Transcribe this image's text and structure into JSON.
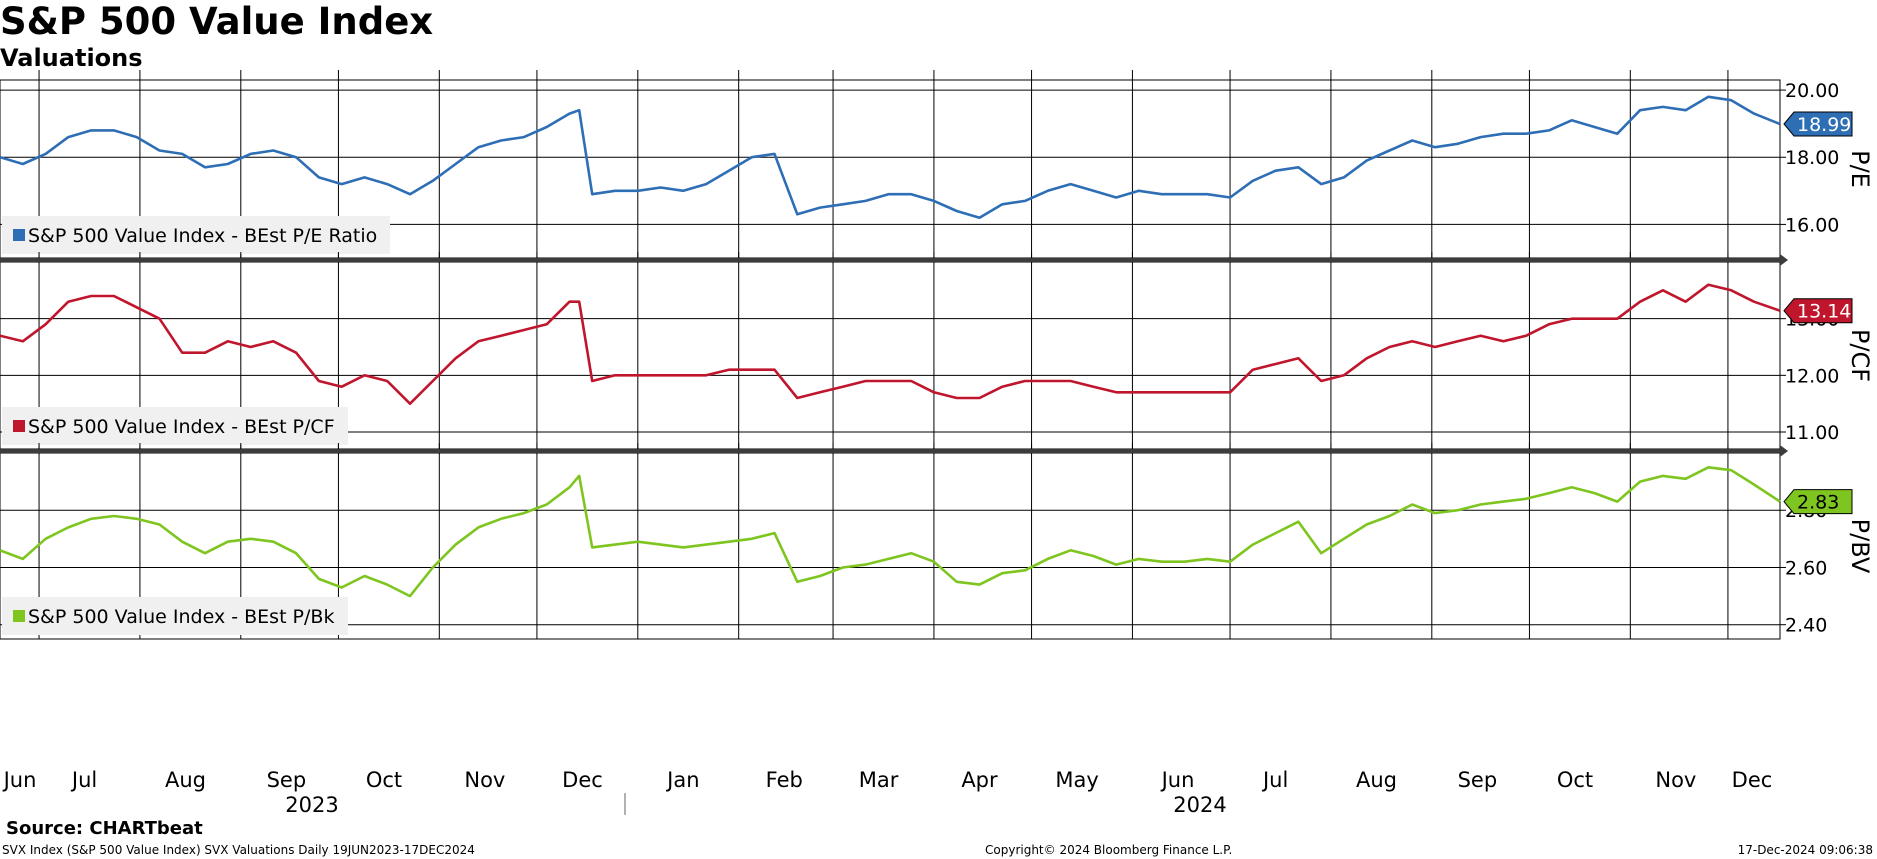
{
  "header": {
    "title": "S&P 500 Value Index",
    "subtitle": "Valuations"
  },
  "footer": {
    "source": "Source: CHARTbeat",
    "description": "SVX Index (S&P 500 Value Index) SVX Valuations  Daily 19JUN2023-17DEC2024",
    "copyright": "Copyright© 2024 Bloomberg Finance L.P.",
    "timestamp": "17-Dec-2024 09:06:38"
  },
  "chart_data": {
    "type": "line",
    "x_months": [
      "Jun",
      "Jul",
      "Aug",
      "Sep",
      "Oct",
      "Nov",
      "Dec",
      "Jan",
      "Feb",
      "Mar",
      "Apr",
      "May",
      "Jun",
      "Jul",
      "Aug",
      "Sep",
      "Oct",
      "Nov",
      "Dec"
    ],
    "x_years": [
      "2023",
      "2024"
    ],
    "x_range": [
      "2023-06-19",
      "2024-12-17"
    ],
    "grid": true,
    "legend_placement": "bottom-left",
    "panels": [
      {
        "ylabel": "P/E",
        "legend": "S&P 500 Value Index - BEst P/E Ratio",
        "color": "#2e6eb5",
        "ylim": [
          15.0,
          20.3
        ],
        "yticks": [
          16.0,
          18.0,
          20.0
        ],
        "ytick_labels": [
          "16.00",
          "18.00",
          "20.00"
        ],
        "last_value": 18.99,
        "last_label": "18.99",
        "series": [
          [
            "2023-06-19",
            18.0
          ],
          [
            "2023-06-26",
            17.8
          ],
          [
            "2023-07-03",
            18.1
          ],
          [
            "2023-07-10",
            18.6
          ],
          [
            "2023-07-17",
            18.8
          ],
          [
            "2023-07-24",
            18.8
          ],
          [
            "2023-07-31",
            18.6
          ],
          [
            "2023-08-07",
            18.2
          ],
          [
            "2023-08-14",
            18.1
          ],
          [
            "2023-08-21",
            17.7
          ],
          [
            "2023-08-28",
            17.8
          ],
          [
            "2023-09-04",
            18.1
          ],
          [
            "2023-09-11",
            18.2
          ],
          [
            "2023-09-18",
            18.0
          ],
          [
            "2023-09-25",
            17.4
          ],
          [
            "2023-10-02",
            17.2
          ],
          [
            "2023-10-09",
            17.4
          ],
          [
            "2023-10-16",
            17.2
          ],
          [
            "2023-10-23",
            16.9
          ],
          [
            "2023-10-30",
            17.3
          ],
          [
            "2023-11-06",
            17.8
          ],
          [
            "2023-11-13",
            18.3
          ],
          [
            "2023-11-20",
            18.5
          ],
          [
            "2023-11-27",
            18.6
          ],
          [
            "2023-12-04",
            18.9
          ],
          [
            "2023-12-11",
            19.3
          ],
          [
            "2023-12-14",
            19.4
          ],
          [
            "2023-12-18",
            16.9
          ],
          [
            "2023-12-25",
            17.0
          ],
          [
            "2024-01-01",
            17.0
          ],
          [
            "2024-01-08",
            17.1
          ],
          [
            "2024-01-15",
            17.0
          ],
          [
            "2024-01-22",
            17.2
          ],
          [
            "2024-01-29",
            17.6
          ],
          [
            "2024-02-05",
            18.0
          ],
          [
            "2024-02-12",
            18.1
          ],
          [
            "2024-02-19",
            16.3
          ],
          [
            "2024-02-26",
            16.5
          ],
          [
            "2024-03-04",
            16.6
          ],
          [
            "2024-03-11",
            16.7
          ],
          [
            "2024-03-18",
            16.9
          ],
          [
            "2024-03-25",
            16.9
          ],
          [
            "2024-04-01",
            16.7
          ],
          [
            "2024-04-08",
            16.4
          ],
          [
            "2024-04-15",
            16.2
          ],
          [
            "2024-04-22",
            16.6
          ],
          [
            "2024-04-29",
            16.7
          ],
          [
            "2024-05-06",
            17.0
          ],
          [
            "2024-05-13",
            17.2
          ],
          [
            "2024-05-20",
            17.0
          ],
          [
            "2024-05-27",
            16.8
          ],
          [
            "2024-06-03",
            17.0
          ],
          [
            "2024-06-10",
            16.9
          ],
          [
            "2024-06-17",
            16.9
          ],
          [
            "2024-06-24",
            16.9
          ],
          [
            "2024-07-01",
            16.8
          ],
          [
            "2024-07-08",
            17.3
          ],
          [
            "2024-07-15",
            17.6
          ],
          [
            "2024-07-22",
            17.7
          ],
          [
            "2024-07-29",
            17.2
          ],
          [
            "2024-08-05",
            17.4
          ],
          [
            "2024-08-12",
            17.9
          ],
          [
            "2024-08-19",
            18.2
          ],
          [
            "2024-08-26",
            18.5
          ],
          [
            "2024-09-02",
            18.3
          ],
          [
            "2024-09-09",
            18.4
          ],
          [
            "2024-09-16",
            18.6
          ],
          [
            "2024-09-23",
            18.7
          ],
          [
            "2024-09-30",
            18.7
          ],
          [
            "2024-10-07",
            18.8
          ],
          [
            "2024-10-14",
            19.1
          ],
          [
            "2024-10-21",
            18.9
          ],
          [
            "2024-10-28",
            18.7
          ],
          [
            "2024-11-04",
            19.4
          ],
          [
            "2024-11-11",
            19.5
          ],
          [
            "2024-11-18",
            19.4
          ],
          [
            "2024-11-25",
            19.8
          ],
          [
            "2024-12-02",
            19.7
          ],
          [
            "2024-12-09",
            19.3
          ],
          [
            "2024-12-17",
            18.99
          ]
        ]
      },
      {
        "ylabel": "P/CF",
        "legend": "S&P 500 Value Index - BEst P/CF",
        "color": "#c0162d",
        "ylim": [
          10.7,
          14.0
        ],
        "yticks": [
          11.0,
          12.0,
          13.0
        ],
        "ytick_labels": [
          "11.00",
          "12.00",
          "13.00"
        ],
        "last_value": 13.14,
        "last_label": "13.14",
        "series": [
          [
            "2023-06-19",
            12.7
          ],
          [
            "2023-06-26",
            12.6
          ],
          [
            "2023-07-03",
            12.9
          ],
          [
            "2023-07-10",
            13.3
          ],
          [
            "2023-07-17",
            13.4
          ],
          [
            "2023-07-24",
            13.4
          ],
          [
            "2023-07-31",
            13.2
          ],
          [
            "2023-08-07",
            13.0
          ],
          [
            "2023-08-14",
            12.4
          ],
          [
            "2023-08-21",
            12.4
          ],
          [
            "2023-08-28",
            12.6
          ],
          [
            "2023-09-04",
            12.5
          ],
          [
            "2023-09-11",
            12.6
          ],
          [
            "2023-09-18",
            12.4
          ],
          [
            "2023-09-25",
            11.9
          ],
          [
            "2023-10-02",
            11.8
          ],
          [
            "2023-10-09",
            12.0
          ],
          [
            "2023-10-16",
            11.9
          ],
          [
            "2023-10-23",
            11.5
          ],
          [
            "2023-10-30",
            11.9
          ],
          [
            "2023-11-06",
            12.3
          ],
          [
            "2023-11-13",
            12.6
          ],
          [
            "2023-11-20",
            12.7
          ],
          [
            "2023-11-27",
            12.8
          ],
          [
            "2023-12-04",
            12.9
          ],
          [
            "2023-12-11",
            13.3
          ],
          [
            "2023-12-14",
            13.3
          ],
          [
            "2023-12-18",
            11.9
          ],
          [
            "2023-12-25",
            12.0
          ],
          [
            "2024-01-01",
            12.0
          ],
          [
            "2024-01-08",
            12.0
          ],
          [
            "2024-01-15",
            12.0
          ],
          [
            "2024-01-22",
            12.0
          ],
          [
            "2024-01-29",
            12.1
          ],
          [
            "2024-02-05",
            12.1
          ],
          [
            "2024-02-12",
            12.1
          ],
          [
            "2024-02-19",
            11.6
          ],
          [
            "2024-02-26",
            11.7
          ],
          [
            "2024-03-04",
            11.8
          ],
          [
            "2024-03-11",
            11.9
          ],
          [
            "2024-03-18",
            11.9
          ],
          [
            "2024-03-25",
            11.9
          ],
          [
            "2024-04-01",
            11.7
          ],
          [
            "2024-04-08",
            11.6
          ],
          [
            "2024-04-15",
            11.6
          ],
          [
            "2024-04-22",
            11.8
          ],
          [
            "2024-04-29",
            11.9
          ],
          [
            "2024-05-06",
            11.9
          ],
          [
            "2024-05-13",
            11.9
          ],
          [
            "2024-05-20",
            11.8
          ],
          [
            "2024-05-27",
            11.7
          ],
          [
            "2024-06-03",
            11.7
          ],
          [
            "2024-06-10",
            11.7
          ],
          [
            "2024-06-17",
            11.7
          ],
          [
            "2024-06-24",
            11.7
          ],
          [
            "2024-07-01",
            11.7
          ],
          [
            "2024-07-08",
            12.1
          ],
          [
            "2024-07-15",
            12.2
          ],
          [
            "2024-07-22",
            12.3
          ],
          [
            "2024-07-29",
            11.9
          ],
          [
            "2024-08-05",
            12.0
          ],
          [
            "2024-08-12",
            12.3
          ],
          [
            "2024-08-19",
            12.5
          ],
          [
            "2024-08-26",
            12.6
          ],
          [
            "2024-09-02",
            12.5
          ],
          [
            "2024-09-09",
            12.6
          ],
          [
            "2024-09-16",
            12.7
          ],
          [
            "2024-09-23",
            12.6
          ],
          [
            "2024-09-30",
            12.7
          ],
          [
            "2024-10-07",
            12.9
          ],
          [
            "2024-10-14",
            13.0
          ],
          [
            "2024-10-21",
            13.0
          ],
          [
            "2024-10-28",
            13.0
          ],
          [
            "2024-11-04",
            13.3
          ],
          [
            "2024-11-11",
            13.5
          ],
          [
            "2024-11-18",
            13.3
          ],
          [
            "2024-11-25",
            13.6
          ],
          [
            "2024-12-02",
            13.5
          ],
          [
            "2024-12-09",
            13.3
          ],
          [
            "2024-12-17",
            13.14
          ]
        ]
      },
      {
        "ylabel": "P/BV",
        "legend": "S&P 500 Value Index - BEst P/Bk",
        "color": "#7ec51f",
        "ylim": [
          2.35,
          3.0
        ],
        "yticks": [
          2.4,
          2.6,
          2.8
        ],
        "ytick_labels": [
          "2.40",
          "2.60",
          "2.80"
        ],
        "last_value": 2.83,
        "last_label": "2.83",
        "series": [
          [
            "2023-06-19",
            2.66
          ],
          [
            "2023-06-26",
            2.63
          ],
          [
            "2023-07-03",
            2.7
          ],
          [
            "2023-07-10",
            2.74
          ],
          [
            "2023-07-17",
            2.77
          ],
          [
            "2023-07-24",
            2.78
          ],
          [
            "2023-07-31",
            2.77
          ],
          [
            "2023-08-07",
            2.75
          ],
          [
            "2023-08-14",
            2.69
          ],
          [
            "2023-08-21",
            2.65
          ],
          [
            "2023-08-28",
            2.69
          ],
          [
            "2023-09-04",
            2.7
          ],
          [
            "2023-09-11",
            2.69
          ],
          [
            "2023-09-18",
            2.65
          ],
          [
            "2023-09-25",
            2.56
          ],
          [
            "2023-10-02",
            2.53
          ],
          [
            "2023-10-09",
            2.57
          ],
          [
            "2023-10-16",
            2.54
          ],
          [
            "2023-10-23",
            2.5
          ],
          [
            "2023-10-30",
            2.6
          ],
          [
            "2023-11-06",
            2.68
          ],
          [
            "2023-11-13",
            2.74
          ],
          [
            "2023-11-20",
            2.77
          ],
          [
            "2023-11-27",
            2.79
          ],
          [
            "2023-12-04",
            2.82
          ],
          [
            "2023-12-11",
            2.88
          ],
          [
            "2023-12-14",
            2.92
          ],
          [
            "2023-12-18",
            2.67
          ],
          [
            "2023-12-25",
            2.68
          ],
          [
            "2024-01-01",
            2.69
          ],
          [
            "2024-01-08",
            2.68
          ],
          [
            "2024-01-15",
            2.67
          ],
          [
            "2024-01-22",
            2.68
          ],
          [
            "2024-01-29",
            2.69
          ],
          [
            "2024-02-05",
            2.7
          ],
          [
            "2024-02-12",
            2.72
          ],
          [
            "2024-02-19",
            2.55
          ],
          [
            "2024-02-26",
            2.57
          ],
          [
            "2024-03-04",
            2.6
          ],
          [
            "2024-03-11",
            2.61
          ],
          [
            "2024-03-18",
            2.63
          ],
          [
            "2024-03-25",
            2.65
          ],
          [
            "2024-04-01",
            2.62
          ],
          [
            "2024-04-08",
            2.55
          ],
          [
            "2024-04-15",
            2.54
          ],
          [
            "2024-04-22",
            2.58
          ],
          [
            "2024-04-29",
            2.59
          ],
          [
            "2024-05-06",
            2.63
          ],
          [
            "2024-05-13",
            2.66
          ],
          [
            "2024-05-20",
            2.64
          ],
          [
            "2024-05-27",
            2.61
          ],
          [
            "2024-06-03",
            2.63
          ],
          [
            "2024-06-10",
            2.62
          ],
          [
            "2024-06-17",
            2.62
          ],
          [
            "2024-06-24",
            2.63
          ],
          [
            "2024-07-01",
            2.62
          ],
          [
            "2024-07-08",
            2.68
          ],
          [
            "2024-07-15",
            2.72
          ],
          [
            "2024-07-22",
            2.76
          ],
          [
            "2024-07-29",
            2.65
          ],
          [
            "2024-08-05",
            2.7
          ],
          [
            "2024-08-12",
            2.75
          ],
          [
            "2024-08-19",
            2.78
          ],
          [
            "2024-08-26",
            2.82
          ],
          [
            "2024-09-02",
            2.79
          ],
          [
            "2024-09-09",
            2.8
          ],
          [
            "2024-09-16",
            2.82
          ],
          [
            "2024-09-23",
            2.83
          ],
          [
            "2024-09-30",
            2.84
          ],
          [
            "2024-10-07",
            2.86
          ],
          [
            "2024-10-14",
            2.88
          ],
          [
            "2024-10-21",
            2.86
          ],
          [
            "2024-10-28",
            2.83
          ],
          [
            "2024-11-04",
            2.9
          ],
          [
            "2024-11-11",
            2.92
          ],
          [
            "2024-11-18",
            2.91
          ],
          [
            "2024-11-25",
            2.95
          ],
          [
            "2024-12-02",
            2.94
          ],
          [
            "2024-12-09",
            2.89
          ],
          [
            "2024-12-17",
            2.83
          ]
        ]
      }
    ]
  }
}
